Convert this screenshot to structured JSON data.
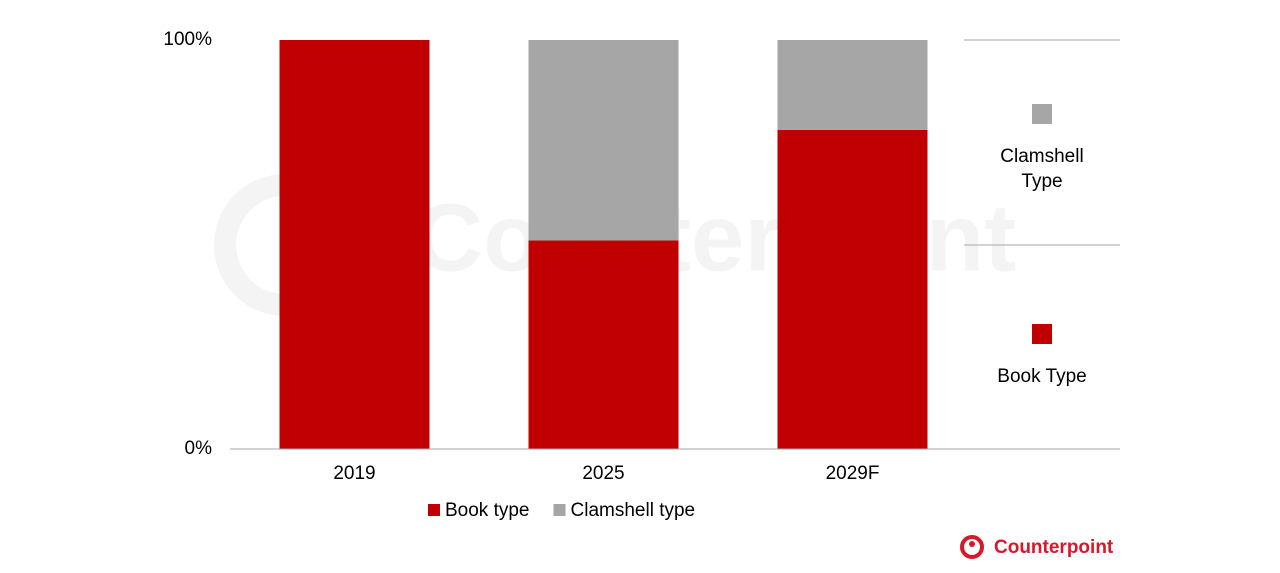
{
  "chart_data": {
    "type": "stacked_bar",
    "categories": [
      "2019",
      "2025",
      "2029F"
    ],
    "series": [
      {
        "name": "Book type",
        "color": "#c00000",
        "values": [
          100,
          51,
          78
        ]
      },
      {
        "name": "Clamshell type",
        "color": "#a6a6a6",
        "values": [
          0,
          49,
          22
        ]
      }
    ],
    "ylim": [
      0,
      100
    ],
    "yticks": [
      {
        "value": 0,
        "label": "0%"
      },
      {
        "value": 100,
        "label": "100%"
      }
    ],
    "grid": false,
    "legend": "bottom",
    "side_legend": [
      "Clamshell Type",
      "Book Type"
    ],
    "watermark": "Counterpoint",
    "brand": "Counterpoint"
  }
}
